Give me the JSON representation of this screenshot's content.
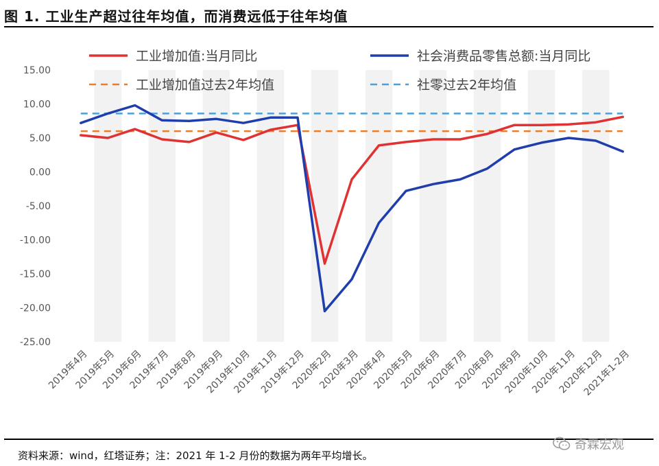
{
  "figure": {
    "title": "图 1. 工业生产超过往年均值，而消费远低于往年均值",
    "source": "资料来源：wind，红塔证券；注：2021 年 1-2 月份的数据为两年平均增长。",
    "watermark": "奇霖宏观",
    "watermark_icon": "wechat-icon"
  },
  "colors": {
    "industrial": "#e03232",
    "retail": "#1f3dab",
    "industrial_avg": "#e87d2a",
    "retail_avg": "#4d9fd6",
    "grid_band": "#f2f2f2"
  },
  "chart_data": {
    "type": "line",
    "categories": [
      "2019年4月",
      "2019年5月",
      "2019年6月",
      "2019年7月",
      "2019年8月",
      "2019年9月",
      "2019年10月",
      "2019年11月",
      "2019年12月",
      "2020年2月",
      "2020年3月",
      "2020年4月",
      "2020年5月",
      "2020年6月",
      "2020年7月",
      "2020年8月",
      "2020年9月",
      "2020年10月",
      "2020年11月",
      "2020年12月",
      "2021年1-2月"
    ],
    "series": [
      {
        "name": "工业增加值:当月同比",
        "style": "solid",
        "color": "#e03232",
        "values": [
          5.4,
          5.0,
          6.3,
          4.8,
          4.4,
          5.8,
          4.7,
          6.2,
          6.9,
          -13.5,
          -1.1,
          3.9,
          4.4,
          4.8,
          4.8,
          5.6,
          6.9,
          6.9,
          7.0,
          7.3,
          8.1
        ]
      },
      {
        "name": "社会消费品零售总额:当月同比",
        "style": "solid",
        "color": "#1f3dab",
        "values": [
          7.2,
          8.6,
          9.8,
          7.6,
          7.5,
          7.8,
          7.2,
          8.0,
          8.0,
          -20.5,
          -15.8,
          -7.5,
          -2.8,
          -1.8,
          -1.1,
          0.5,
          3.3,
          4.3,
          5.0,
          4.6,
          3.0
        ]
      },
      {
        "name": "工业增加值过去2年均值",
        "style": "dashed",
        "color": "#e87d2a",
        "values": [
          6.0,
          6.0,
          6.0,
          6.0,
          6.0,
          6.0,
          6.0,
          6.0,
          6.0,
          6.0,
          6.0,
          6.0,
          6.0,
          6.0,
          6.0,
          6.0,
          6.0,
          6.0,
          6.0,
          6.0,
          6.0
        ]
      },
      {
        "name": "社零过去2年均值",
        "style": "dashed",
        "color": "#4d9fd6",
        "values": [
          8.6,
          8.6,
          8.6,
          8.6,
          8.6,
          8.6,
          8.6,
          8.6,
          8.6,
          8.6,
          8.6,
          8.6,
          8.6,
          8.6,
          8.6,
          8.6,
          8.6,
          8.6,
          8.6,
          8.6,
          8.6
        ]
      }
    ],
    "ylim": [
      -25,
      15
    ],
    "yticks": [
      "15.00",
      "10.00",
      "5.00",
      "0.00",
      "-5.00",
      "-10.00",
      "-15.00",
      "-20.00",
      "-25.00"
    ],
    "ytick_values": [
      15,
      10,
      5,
      0,
      -5,
      -10,
      -15,
      -20,
      -25
    ],
    "legend_placement": "top",
    "grid": "alternating vertical bands",
    "xlabel": "",
    "ylabel": ""
  }
}
